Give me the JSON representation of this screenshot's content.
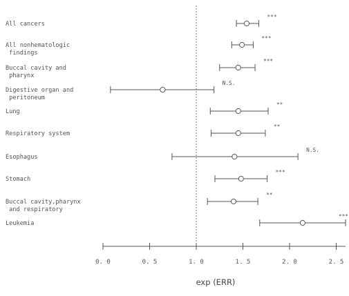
{
  "chart_data": {
    "type": "forest",
    "xlabel": "exp (ERR)",
    "xlim": [
      0.0,
      2.6
    ],
    "reference_line": 1.0,
    "x_ticks": [
      {
        "value": 0.0,
        "label": "0. 0"
      },
      {
        "value": 0.5,
        "label": "0. 5"
      },
      {
        "value": 1.0,
        "label": "1. 0"
      },
      {
        "value": 1.5,
        "label": "1. 5"
      },
      {
        "value": 2.0,
        "label": "2. 0"
      },
      {
        "value": 2.5,
        "label": "2. 5"
      }
    ],
    "rows": [
      {
        "label_lines": [
          "All cancers"
        ],
        "estimate": 1.54,
        "lower": 1.43,
        "upper": 1.67,
        "significance": "***"
      },
      {
        "label_lines": [
          "All nonhematologic",
          "  findings"
        ],
        "estimate": 1.49,
        "lower": 1.38,
        "upper": 1.61,
        "significance": "***"
      },
      {
        "label_lines": [
          "Buccal cavity and",
          "  pharynx"
        ],
        "estimate": 1.45,
        "lower": 1.25,
        "upper": 1.63,
        "significance": "***"
      },
      {
        "label_lines": [
          "Digestive organ and",
          "  peritoneum"
        ],
        "estimate": 0.64,
        "lower": 0.08,
        "upper": 1.19,
        "significance": "N.S."
      },
      {
        "label_lines": [
          "Lung"
        ],
        "estimate": 1.45,
        "lower": 1.15,
        "upper": 1.77,
        "significance": "**"
      },
      {
        "label_lines": [
          "Respiratory system"
        ],
        "estimate": 1.45,
        "lower": 1.16,
        "upper": 1.74,
        "significance": "**"
      },
      {
        "label_lines": [
          "Esophagus"
        ],
        "estimate": 1.41,
        "lower": 0.74,
        "upper": 2.09,
        "significance": "N.S."
      },
      {
        "label_lines": [
          "Stomach"
        ],
        "estimate": 1.48,
        "lower": 1.2,
        "upper": 1.76,
        "significance": "***"
      },
      {
        "label_lines": [
          "Buccal cavity,pharynx",
          "  and respiratory"
        ],
        "estimate": 1.4,
        "lower": 1.12,
        "upper": 1.66,
        "significance": "**"
      },
      {
        "label_lines": [
          "Leukemia"
        ],
        "estimate": 2.14,
        "lower": 1.68,
        "upper": 2.6,
        "significance": "***"
      }
    ]
  }
}
